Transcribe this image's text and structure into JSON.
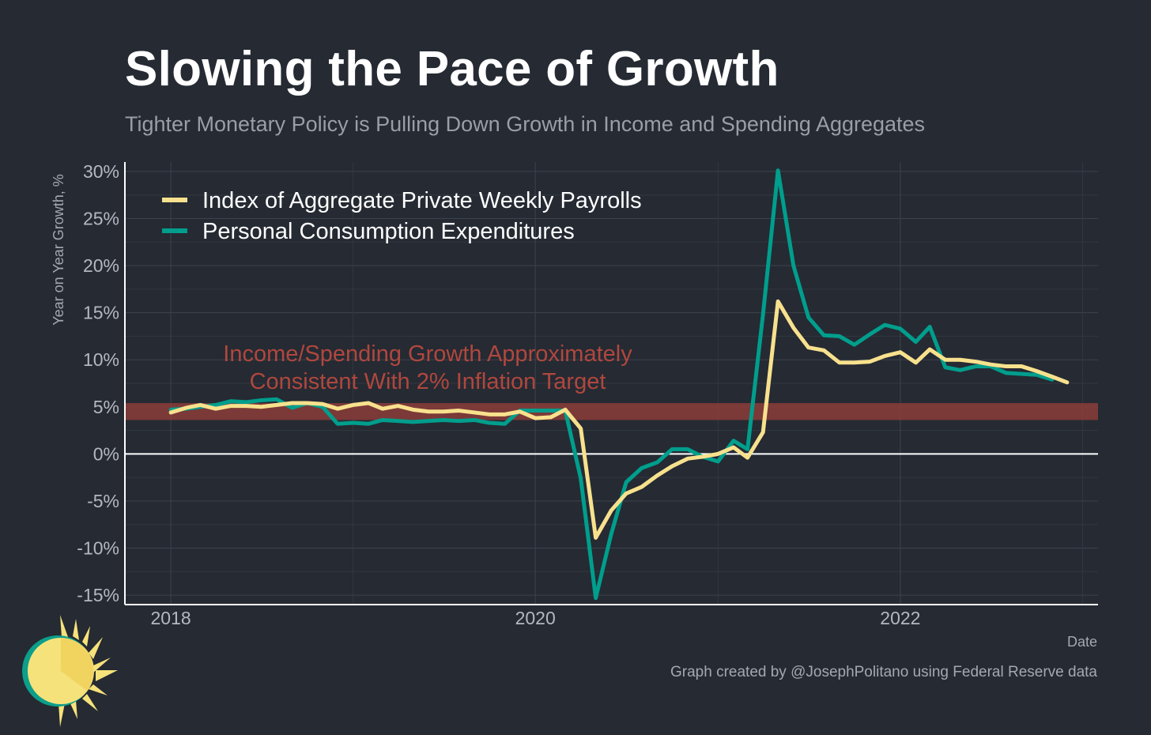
{
  "header": {
    "title": "Slowing the Pace of Growth",
    "subtitle": "Tighter Monetary Policy is Pulling Down Growth in Income and Spending Aggregates"
  },
  "footer": {
    "caption": "Graph created by @JosephPolitano using Federal Reserve data"
  },
  "colors": {
    "background": "#252a33",
    "payrolls": "#f8e18d",
    "pce": "#009e8c",
    "band": "#8b3c38",
    "band_text": "#b0473d"
  },
  "chart_data": {
    "type": "line",
    "title": "Slowing the Pace of Growth",
    "subtitle": "Tighter Monetary Policy is Pulling Down Growth in Income and Spending Aggregates",
    "xlabel": "Date",
    "ylabel": "Year on Year Growth, %",
    "xlim": [
      "2017-10-01",
      "2023-02-01"
    ],
    "ylim": [
      -16,
      31
    ],
    "x_ticks": [
      "2018",
      "2020",
      "2022"
    ],
    "y_ticks": [
      -15,
      -10,
      -5,
      0,
      5,
      10,
      15,
      20,
      25,
      30
    ],
    "y_tick_labels": [
      "-15%",
      "-10%",
      "-5%",
      "0%",
      "5%",
      "10%",
      "15%",
      "20%",
      "25%",
      "30%"
    ],
    "grid": true,
    "legend_position": "top-left",
    "annotation": {
      "lines": [
        "Income/Spending Growth Approximately",
        "Consistent With 2% Inflation Target"
      ],
      "band_range": [
        3.6,
        5.4
      ]
    },
    "series": [
      {
        "name": "Index of Aggregate Private Weekly Payrolls",
        "color": "#f8e18d",
        "points": [
          [
            "2018-01",
            4.4
          ],
          [
            "2018-02",
            4.9
          ],
          [
            "2018-03",
            5.2
          ],
          [
            "2018-04",
            4.8
          ],
          [
            "2018-05",
            5.1
          ],
          [
            "2018-06",
            5.1
          ],
          [
            "2018-07",
            5.0
          ],
          [
            "2018-08",
            5.2
          ],
          [
            "2018-09",
            5.4
          ],
          [
            "2018-10",
            5.4
          ],
          [
            "2018-11",
            5.3
          ],
          [
            "2018-12",
            4.8
          ],
          [
            "2019-01",
            5.2
          ],
          [
            "2019-02",
            5.4
          ],
          [
            "2019-03",
            4.8
          ],
          [
            "2019-04",
            5.1
          ],
          [
            "2019-05",
            4.7
          ],
          [
            "2019-06",
            4.5
          ],
          [
            "2019-07",
            4.5
          ],
          [
            "2019-08",
            4.6
          ],
          [
            "2019-09",
            4.4
          ],
          [
            "2019-10",
            4.2
          ],
          [
            "2019-11",
            4.2
          ],
          [
            "2019-12",
            4.5
          ],
          [
            "2020-01",
            3.8
          ],
          [
            "2020-02",
            3.9
          ],
          [
            "2020-03",
            4.7
          ],
          [
            "2020-04",
            2.7
          ],
          [
            "2020-05",
            -8.9
          ],
          [
            "2020-06",
            -6.0
          ],
          [
            "2020-07",
            -4.2
          ],
          [
            "2020-08",
            -3.5
          ],
          [
            "2020-09",
            -2.3
          ],
          [
            "2020-10",
            -1.3
          ],
          [
            "2020-11",
            -0.5
          ],
          [
            "2020-12",
            -0.3
          ],
          [
            "2021-01",
            0.0
          ],
          [
            "2021-02",
            0.7
          ],
          [
            "2021-03",
            -0.4
          ],
          [
            "2021-04",
            2.3
          ],
          [
            "2021-05",
            16.2
          ],
          [
            "2021-06",
            13.4
          ],
          [
            "2021-07",
            11.3
          ],
          [
            "2021-08",
            11.0
          ],
          [
            "2021-09",
            9.7
          ],
          [
            "2021-10",
            9.7
          ],
          [
            "2021-11",
            9.8
          ],
          [
            "2021-12",
            10.4
          ],
          [
            "2022-01",
            10.8
          ],
          [
            "2022-02",
            9.7
          ],
          [
            "2022-03",
            11.1
          ],
          [
            "2022-04",
            10.0
          ],
          [
            "2022-05",
            10.0
          ],
          [
            "2022-06",
            9.8
          ],
          [
            "2022-07",
            9.5
          ],
          [
            "2022-08",
            9.3
          ],
          [
            "2022-09",
            9.3
          ],
          [
            "2022-10",
            8.8
          ],
          [
            "2022-11",
            8.2
          ],
          [
            "2022-12",
            7.6
          ]
        ]
      },
      {
        "name": "Personal Consumption Expenditures",
        "color": "#009e8c",
        "points": [
          [
            "2018-01",
            4.7
          ],
          [
            "2018-02",
            4.8
          ],
          [
            "2018-03",
            5.0
          ],
          [
            "2018-04",
            5.2
          ],
          [
            "2018-05",
            5.6
          ],
          [
            "2018-06",
            5.5
          ],
          [
            "2018-07",
            5.7
          ],
          [
            "2018-08",
            5.8
          ],
          [
            "2018-09",
            4.9
          ],
          [
            "2018-10",
            5.4
          ],
          [
            "2018-11",
            5.0
          ],
          [
            "2018-12",
            3.2
          ],
          [
            "2019-01",
            3.3
          ],
          [
            "2019-02",
            3.2
          ],
          [
            "2019-03",
            3.6
          ],
          [
            "2019-04",
            3.5
          ],
          [
            "2019-05",
            3.4
          ],
          [
            "2019-06",
            3.5
          ],
          [
            "2019-07",
            3.6
          ],
          [
            "2019-08",
            3.5
          ],
          [
            "2019-09",
            3.6
          ],
          [
            "2019-10",
            3.3
          ],
          [
            "2019-11",
            3.2
          ],
          [
            "2019-12",
            4.6
          ],
          [
            "2020-01",
            4.6
          ],
          [
            "2020-02",
            4.6
          ],
          [
            "2020-03",
            4.6
          ],
          [
            "2020-04",
            -2.6
          ],
          [
            "2020-05",
            -15.3
          ],
          [
            "2020-06",
            -8.5
          ],
          [
            "2020-07",
            -3.0
          ],
          [
            "2020-08",
            -1.5
          ],
          [
            "2020-09",
            -0.9
          ],
          [
            "2020-10",
            0.5
          ],
          [
            "2020-11",
            0.5
          ],
          [
            "2020-12",
            -0.3
          ],
          [
            "2021-01",
            -0.8
          ],
          [
            "2021-02",
            1.4
          ],
          [
            "2021-03",
            0.5
          ],
          [
            "2021-04",
            14.8
          ],
          [
            "2021-05",
            30.1
          ],
          [
            "2021-06",
            20.0
          ],
          [
            "2021-07",
            14.5
          ],
          [
            "2021-08",
            12.6
          ],
          [
            "2021-09",
            12.5
          ],
          [
            "2021-10",
            11.6
          ],
          [
            "2021-11",
            12.7
          ],
          [
            "2021-12",
            13.7
          ],
          [
            "2022-01",
            13.3
          ],
          [
            "2022-02",
            11.9
          ],
          [
            "2022-03",
            13.5
          ],
          [
            "2022-04",
            9.2
          ],
          [
            "2022-05",
            8.9
          ],
          [
            "2022-06",
            9.3
          ],
          [
            "2022-07",
            9.3
          ],
          [
            "2022-08",
            8.6
          ],
          [
            "2022-09",
            8.5
          ],
          [
            "2022-10",
            8.4
          ],
          [
            "2022-11",
            7.9
          ]
        ]
      }
    ]
  }
}
